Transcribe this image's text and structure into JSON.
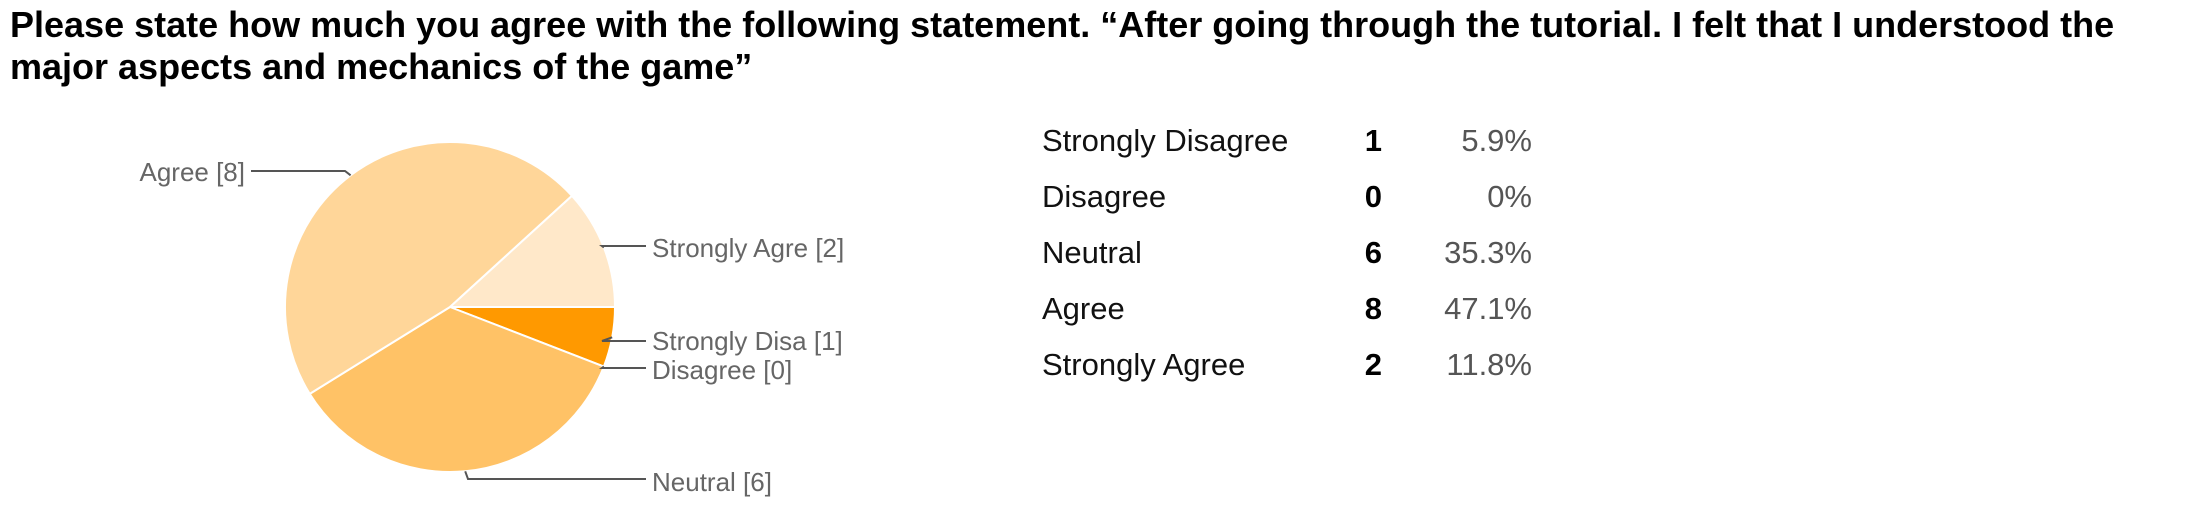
{
  "question": "Please state how much you agree with the following statement. “After going through the tutorial. I felt that I understood the major aspects and mechanics of the game”",
  "summary_rows": [
    {
      "label": "Strongly Disagree",
      "count": "1",
      "percent": "5.9%"
    },
    {
      "label": "Disagree",
      "count": "0",
      "percent": "0%"
    },
    {
      "label": "Neutral",
      "count": "6",
      "percent": "35.3%"
    },
    {
      "label": "Agree",
      "count": "8",
      "percent": "47.1%"
    },
    {
      "label": "Strongly Agree",
      "count": "2",
      "percent": "11.8%"
    }
  ],
  "chart_data": {
    "type": "pie",
    "slices": [
      {
        "label": "Strongly Disa [1]",
        "value": 1,
        "color": "#ff9900"
      },
      {
        "label": "Disagree [0]",
        "value": 0,
        "color": "#ffa726"
      },
      {
        "label": "Neutral [6]",
        "value": 6,
        "color": "#ffc266"
      },
      {
        "label": "Agree [8]",
        "value": 8,
        "color": "#ffd699"
      },
      {
        "label": "Strongly Agre [2]",
        "value": 2,
        "color": "#ffe8c9"
      }
    ],
    "legend": "none",
    "label_color": "#666666",
    "leader_line_color": "#555555"
  }
}
